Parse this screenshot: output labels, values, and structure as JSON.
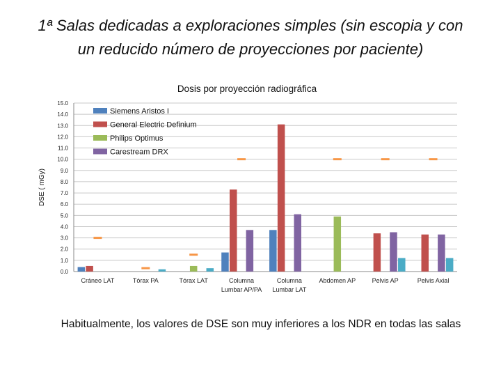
{
  "slide": {
    "title_line1": "1ª Salas dedicadas a exploraciones simples  (sin escopia y con",
    "title_line2": "un reducido número de proyecciones por paciente)",
    "footnote": "Habitualmente, los valores de DSE son muy inferiores a los NDR en todas las salas"
  },
  "chart_data": {
    "type": "bar",
    "title": "Dosis por proyección radiográfica",
    "xlabel": "",
    "ylabel": "DSE ( mGy)",
    "ylim": [
      0,
      15
    ],
    "yticks": [
      "0.0",
      "1.0",
      "2.0",
      "3.0",
      "4.0",
      "5.0",
      "6.0",
      "7.0",
      "8.0",
      "9.0",
      "10.0",
      "11.0",
      "12.0",
      "13.0",
      "14.0",
      "15.0"
    ],
    "grid": true,
    "legend_position": "top-left",
    "categories": [
      [
        "Cráneo LAT"
      ],
      [
        "Tórax PA"
      ],
      [
        "Tórax LAT"
      ],
      [
        "Columna",
        "Lumbar AP/PA"
      ],
      [
        "Columna",
        "Lumbar LAT"
      ],
      [
        "Abdomen AP"
      ],
      [
        "Pelvis AP"
      ],
      [
        "Pelvis Axial"
      ]
    ],
    "series": [
      {
        "name": "Siemens Aristos I",
        "color": "#4F81BD",
        "values": [
          0.4,
          null,
          null,
          1.7,
          3.7,
          null,
          null,
          null
        ]
      },
      {
        "name": "General Electric Definium",
        "color": "#C0504D",
        "values": [
          0.5,
          null,
          null,
          7.3,
          13.1,
          null,
          3.4,
          3.3
        ]
      },
      {
        "name": "Philips Optimus",
        "color": "#9BBB59",
        "values": [
          null,
          null,
          0.5,
          null,
          null,
          4.9,
          null,
          null
        ]
      },
      {
        "name": "Carestream DRX",
        "color": "#8064A2",
        "values": [
          null,
          null,
          null,
          3.7,
          5.1,
          null,
          3.5,
          3.3
        ]
      },
      {
        "name": "",
        "color": "#4BACC6",
        "values": [
          null,
          0.2,
          0.3,
          null,
          null,
          null,
          1.2,
          1.2
        ]
      }
    ],
    "reference_levels": {
      "color": "#F79646",
      "values": [
        3.0,
        0.3,
        1.5,
        10.0,
        null,
        10.0,
        10.0,
        10.0
      ]
    }
  }
}
